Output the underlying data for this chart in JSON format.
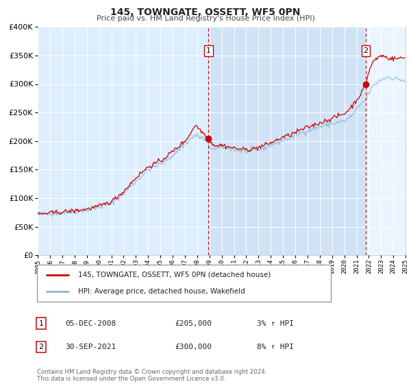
{
  "title": "145, TOWNGATE, OSSETT, WF5 0PN",
  "subtitle": "Price paid vs. HM Land Registry's House Price Index (HPI)",
  "legend_line1": "145, TOWNGATE, OSSETT, WF5 0PN (detached house)",
  "legend_line2": "HPI: Average price, detached house, Wakefield",
  "sale1_label": "1",
  "sale1_date": "05-DEC-2008",
  "sale1_price": "£205,000",
  "sale1_hpi": "3% ↑ HPI",
  "sale1_year": 2008.92,
  "sale1_value": 205000,
  "sale2_label": "2",
  "sale2_date": "30-SEP-2021",
  "sale2_price": "£300,000",
  "sale2_hpi": "8% ↑ HPI",
  "sale2_year": 2021.75,
  "sale2_value": 300000,
  "hpi_color": "#8cb8d8",
  "price_color": "#cc0000",
  "dot_color": "#cc0000",
  "vline_color": "#cc0000",
  "plot_bg": "#ddeeff",
  "sale_span_bg": "#cce0f0",
  "outer_bg": "#ffffff",
  "ylim": [
    0,
    400000
  ],
  "xlim_start": 1995,
  "xlim_end": 2025,
  "footnote": "Contains HM Land Registry data © Crown copyright and database right 2024.\nThis data is licensed under the Open Government Licence v3.0."
}
